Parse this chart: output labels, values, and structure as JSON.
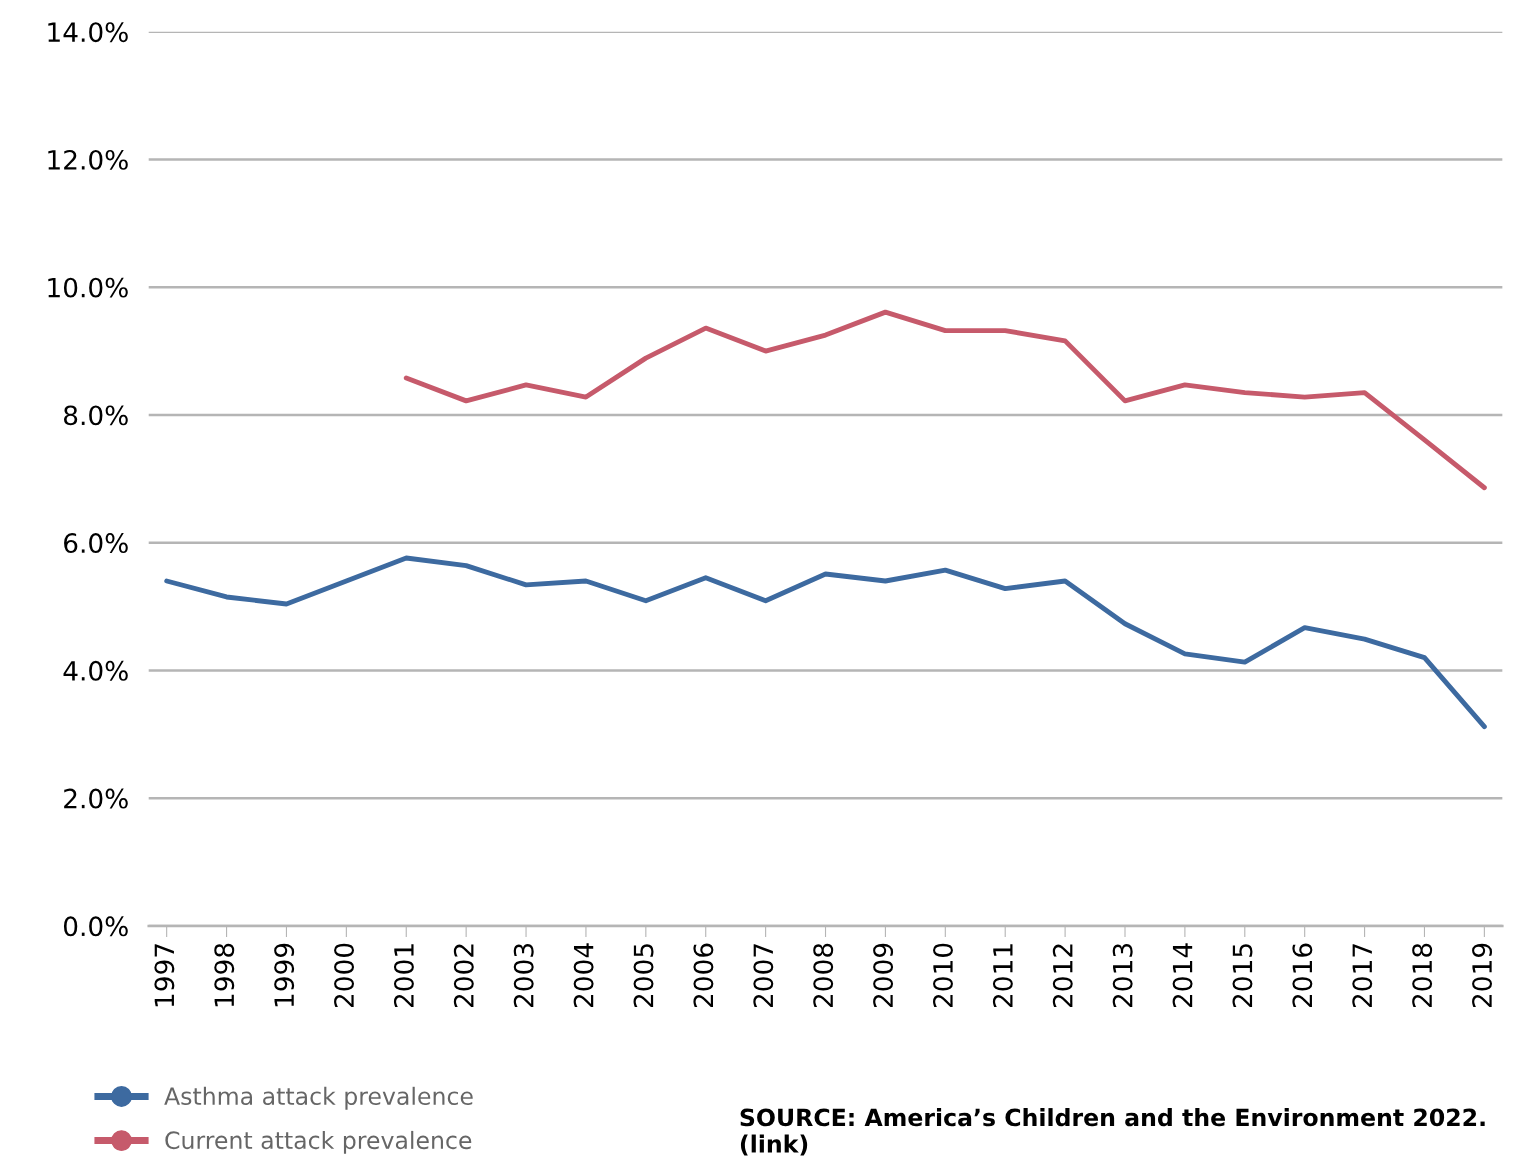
{
  "chart_data": {
    "type": "line",
    "categories": [
      "1997",
      "1998",
      "1999",
      "2000",
      "2001",
      "2002",
      "2003",
      "2004",
      "2005",
      "2006",
      "2007",
      "2008",
      "2009",
      "2010",
      "2011",
      "2012",
      "2013",
      "2014",
      "2015",
      "2016",
      "2017",
      "2018",
      "2019"
    ],
    "series": [
      {
        "name": "Asthma attack prevalence",
        "color": "#3d6aa0",
        "values": [
          5.4,
          5.15,
          5.04,
          5.4,
          5.76,
          5.64,
          5.34,
          5.4,
          5.09,
          5.45,
          5.09,
          5.51,
          5.4,
          5.57,
          5.28,
          5.4,
          4.73,
          4.26,
          4.13,
          4.67,
          4.49,
          4.2,
          3.12
        ]
      },
      {
        "name": "Current attack prevalence",
        "color": "#c65a6b",
        "values": [
          null,
          null,
          null,
          null,
          8.58,
          8.22,
          8.47,
          8.28,
          8.89,
          9.36,
          9.0,
          9.25,
          9.61,
          9.32,
          9.32,
          9.16,
          8.22,
          8.47,
          8.35,
          8.28,
          8.35,
          7.61,
          6.86
        ]
      }
    ],
    "ylim": [
      0,
      14
    ],
    "yticks": [
      {
        "value": 0,
        "label": "0.0%"
      },
      {
        "value": 2,
        "label": "2.0%"
      },
      {
        "value": 4,
        "label": "4.0%"
      },
      {
        "value": 6,
        "label": "6.0%"
      },
      {
        "value": 8,
        "label": "8.0%"
      },
      {
        "value": 10,
        "label": "10.0%"
      },
      {
        "value": 12,
        "label": "12.0%"
      },
      {
        "value": 14,
        "label": "14.0%"
      }
    ],
    "grid": "y",
    "legend": "bottom left",
    "line_style": "solid",
    "annotations": [
      "SOURCE: America’s Children and the Environment 2022. (link)"
    ]
  }
}
